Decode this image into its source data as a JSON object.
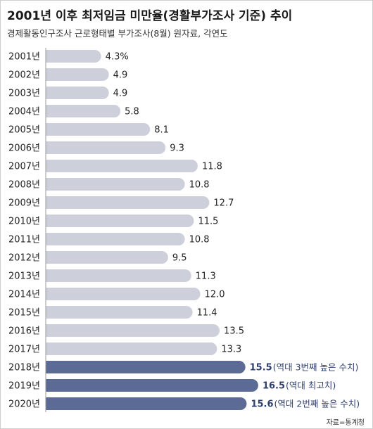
{
  "header": {
    "title": "2001년 이후 최저임금 미만율(경활부가조사 기준) 추이",
    "subtitle": "경제활동인구조사 근로형태별 부가조사(8월) 원자료, 각연도"
  },
  "footer": {
    "source": "자료=통계청"
  },
  "colors": {
    "bar_normal": "#cdd0db",
    "bar_highlight": "#5c6a96",
    "axis": "#999999",
    "highlight_text": "#2f3f6e"
  },
  "chart_data": {
    "type": "bar",
    "orientation": "horizontal",
    "categories": [
      "2001년",
      "2002년",
      "2003년",
      "2004년",
      "2005년",
      "2006년",
      "2007년",
      "2008년",
      "2009년",
      "2010년",
      "2011년",
      "2012년",
      "2013년",
      "2014년",
      "2015년",
      "2016년",
      "2017년",
      "2018년",
      "2019년",
      "2020년"
    ],
    "values": [
      4.3,
      4.9,
      4.9,
      5.8,
      8.1,
      9.3,
      11.8,
      10.8,
      12.7,
      11.5,
      10.8,
      9.5,
      11.3,
      12.0,
      11.4,
      13.5,
      13.3,
      15.5,
      16.5,
      15.6
    ],
    "value_labels": [
      "4.3%",
      "4.9",
      "4.9",
      "5.8",
      "8.1",
      "9.3",
      "11.8",
      "10.8",
      "12.7",
      "11.5",
      "10.8",
      "9.5",
      "11.3",
      "12.0",
      "11.4",
      "13.5",
      "13.3",
      "15.5",
      "16.5",
      "15.6"
    ],
    "highlighted": [
      "2018년",
      "2019년",
      "2020년"
    ],
    "annotations": {
      "2018년": "(역대 3번째 높은 수치)",
      "2019년": "(역대 최고치)",
      "2020년": "(역대 2번째 높은 수치)"
    },
    "xlim": [
      0,
      18
    ],
    "grid": false,
    "legend": "none"
  }
}
